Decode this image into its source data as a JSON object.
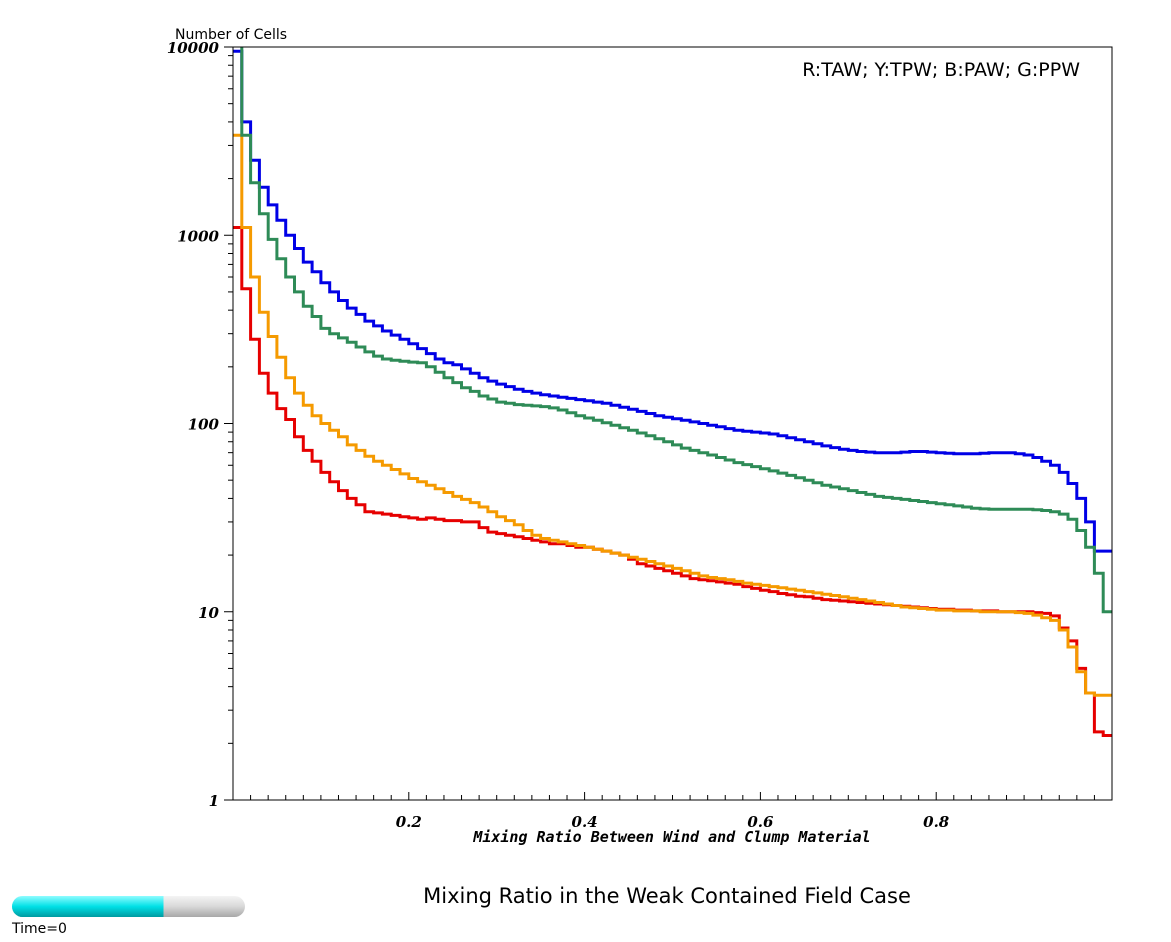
{
  "chart_data": {
    "type": "line",
    "step": true,
    "title": "Mixing Ratio in the Weak Contained Field Case",
    "xlabel": "Mixing Ratio Between Wind and Clump Material",
    "ylabel": "Number of Cells",
    "legend_text": "R:TAW; Y:TPW; B:PAW; G:PPW",
    "legend_position": "top-right",
    "y_scale": "log",
    "xlim": [
      0,
      1
    ],
    "ylim": [
      1,
      10000
    ],
    "x_ticks": [
      0.2,
      0.4,
      0.6,
      0.8
    ],
    "x_tick_labels": [
      "0.2",
      "0.4",
      "0.6",
      "0.8"
    ],
    "y_ticks": [
      1,
      10,
      100,
      1000,
      10000
    ],
    "y_tick_labels": [
      "1",
      "10",
      "100",
      "1000",
      "10000"
    ],
    "x": [
      0,
      0.01,
      0.02,
      0.03,
      0.04,
      0.05,
      0.06,
      0.07,
      0.08,
      0.09,
      0.1,
      0.11,
      0.12,
      0.13,
      0.14,
      0.15,
      0.16,
      0.17,
      0.18,
      0.19,
      0.2,
      0.21,
      0.22,
      0.23,
      0.24,
      0.25,
      0.26,
      0.27,
      0.28,
      0.29,
      0.3,
      0.31,
      0.32,
      0.33,
      0.34,
      0.35,
      0.36,
      0.37,
      0.38,
      0.39,
      0.4,
      0.41,
      0.42,
      0.43,
      0.44,
      0.45,
      0.46,
      0.47,
      0.48,
      0.49,
      0.5,
      0.51,
      0.52,
      0.53,
      0.54,
      0.55,
      0.56,
      0.57,
      0.58,
      0.59,
      0.6,
      0.61,
      0.62,
      0.63,
      0.64,
      0.65,
      0.66,
      0.67,
      0.68,
      0.69,
      0.7,
      0.71,
      0.72,
      0.73,
      0.74,
      0.75,
      0.76,
      0.77,
      0.78,
      0.79,
      0.8,
      0.81,
      0.82,
      0.83,
      0.84,
      0.85,
      0.86,
      0.87,
      0.88,
      0.89,
      0.9,
      0.91,
      0.92,
      0.93,
      0.94,
      0.95,
      0.96,
      0.97,
      0.98,
      0.99
    ],
    "series": [
      {
        "color": "#e60000",
        "values": [
          1100,
          520,
          280,
          185,
          145,
          120,
          105,
          85,
          72,
          63,
          55,
          49,
          44,
          40,
          37,
          34,
          33.5,
          33,
          32.5,
          32,
          31.5,
          31,
          31.5,
          31,
          30.5,
          30.5,
          30,
          30,
          28,
          26.5,
          26,
          25.5,
          25,
          24.5,
          24,
          23.5,
          23,
          23,
          22.5,
          22,
          22,
          21.5,
          21,
          20.5,
          20,
          19,
          18,
          17.5,
          17,
          16.5,
          16,
          15.5,
          15,
          14.8,
          14.6,
          14.4,
          14.2,
          14,
          13.6,
          13.3,
          13,
          12.8,
          12.5,
          12.3,
          12.1,
          12,
          11.8,
          11.6,
          11.5,
          11.4,
          11.3,
          11.2,
          11.1,
          11,
          10.9,
          10.8,
          10.7,
          10.6,
          10.5,
          10.4,
          10.3,
          10.3,
          10.2,
          10.2,
          10.1,
          10.1,
          10.1,
          10,
          10,
          10,
          10,
          9.9,
          9.8,
          9.5,
          8.2,
          7,
          5,
          3.7,
          2.3,
          2.2
        ]
      },
      {
        "color": "#f59a00",
        "values": [
          3400,
          1100,
          600,
          390,
          290,
          225,
          175,
          145,
          125,
          110,
          100,
          92,
          85,
          77,
          72,
          67,
          63,
          60,
          57,
          54,
          51,
          49,
          47,
          45,
          43,
          41,
          39.5,
          38,
          36,
          34,
          32,
          30.5,
          29,
          27,
          25.5,
          24.5,
          24,
          23.5,
          23,
          22.5,
          22,
          21.5,
          21,
          20.5,
          20,
          19.5,
          19,
          18.5,
          18,
          17.5,
          17,
          16.5,
          16,
          15.5,
          15.2,
          15,
          14.8,
          14.5,
          14.2,
          14,
          13.8,
          13.6,
          13.4,
          13.2,
          13,
          12.8,
          12.6,
          12.4,
          12.2,
          12,
          11.8,
          11.6,
          11.4,
          11.2,
          11,
          10.8,
          10.6,
          10.5,
          10.4,
          10.3,
          10.2,
          10.2,
          10.1,
          10.1,
          10.1,
          10,
          10,
          10,
          10,
          9.9,
          9.8,
          9.6,
          9.3,
          9,
          8,
          6.5,
          4.8,
          3.7,
          3.6,
          3.6
        ]
      },
      {
        "color": "#0000e6",
        "values": [
          9500,
          4000,
          2500,
          1800,
          1450,
          1200,
          1000,
          850,
          720,
          640,
          560,
          500,
          450,
          410,
          380,
          350,
          330,
          310,
          295,
          280,
          265,
          250,
          235,
          220,
          210,
          205,
          195,
          185,
          175,
          168,
          162,
          157,
          152,
          148,
          145,
          142,
          140,
          138,
          136,
          134,
          132,
          130,
          128,
          125,
          122,
          119,
          116,
          113,
          110,
          108,
          106,
          104,
          102,
          100,
          98,
          96,
          94,
          92,
          91,
          90,
          89,
          88,
          86,
          84,
          82,
          80,
          78,
          76,
          74.5,
          73,
          72,
          71,
          70.5,
          70,
          70,
          70,
          70.5,
          71,
          71,
          70.5,
          70,
          69.5,
          69,
          69,
          69,
          69.5,
          70,
          70,
          70,
          69,
          68,
          66,
          63,
          60,
          55,
          48,
          40,
          30,
          21,
          21
        ]
      },
      {
        "color": "#2e8b57",
        "values": [
          12000,
          3400,
          1900,
          1300,
          950,
          750,
          600,
          500,
          420,
          370,
          320,
          300,
          285,
          270,
          255,
          240,
          228,
          220,
          217,
          214,
          212,
          210,
          200,
          187,
          175,
          165,
          155,
          148,
          140,
          135,
          130,
          128,
          126,
          125,
          124,
          123,
          121,
          118,
          114,
          110,
          107,
          104,
          101,
          98,
          95,
          92,
          89,
          86,
          83,
          80,
          77,
          74,
          72,
          70,
          68,
          66,
          64,
          62,
          60.5,
          59,
          57.5,
          56,
          54.5,
          53,
          51.5,
          50,
          48.5,
          47,
          46,
          45,
          44,
          43,
          42,
          41,
          40.5,
          40,
          39.5,
          39,
          38.5,
          38,
          37.5,
          37,
          36.5,
          36,
          35.5,
          35.2,
          35,
          35,
          35,
          35,
          35,
          34.8,
          34.5,
          34,
          33,
          31,
          27,
          22,
          16,
          10
        ]
      }
    ]
  },
  "time_slider": {
    "label": "Time=0",
    "fill_fraction": 0.65,
    "fill_color": "#00e0e6"
  }
}
